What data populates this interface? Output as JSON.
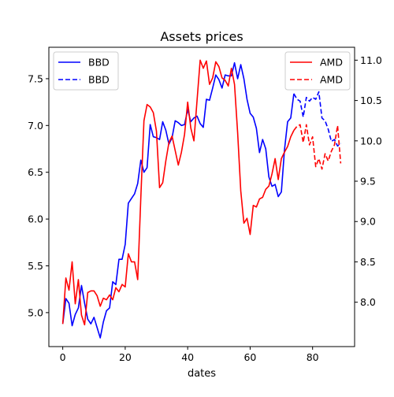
{
  "chart_data": {
    "type": "line",
    "title": "Assets prices",
    "xlabel": "dates",
    "xlim": [
      -4.45,
      93.45
    ],
    "xticks": [
      0,
      20,
      40,
      60,
      80
    ],
    "left_axis": {
      "ylim": [
        4.637,
        7.836
      ],
      "ticks": [
        5.0,
        5.5,
        6.0,
        6.5,
        7.0,
        7.5
      ]
    },
    "right_axis": {
      "ylim": [
        7.45,
        11.16
      ],
      "ticks": [
        8.0,
        8.5,
        9.0,
        9.5,
        10.0,
        10.5,
        11.0
      ]
    },
    "grid": false,
    "series": [
      {
        "name": "BBD",
        "axis": "left",
        "color": "#0000ff",
        "style": "solid",
        "x": [
          0,
          1,
          2,
          3,
          4,
          5,
          6,
          7,
          8,
          9,
          10,
          11,
          12,
          13,
          14,
          15,
          16,
          17,
          18,
          19,
          20,
          21,
          22,
          23,
          24,
          25,
          26,
          27,
          28,
          29,
          30,
          31,
          32,
          33,
          34,
          35,
          36,
          37,
          38,
          39,
          40,
          41,
          42,
          43,
          44,
          45,
          46,
          47,
          48,
          49,
          50,
          51,
          52,
          53,
          54,
          55,
          56,
          57,
          58,
          59,
          60,
          61,
          62,
          63,
          64,
          65,
          66,
          67,
          68,
          69,
          70,
          71,
          72,
          73,
          74
        ],
        "values": [
          4.88,
          5.15,
          5.1,
          4.86,
          4.98,
          5.05,
          5.29,
          5.1,
          4.93,
          4.88,
          4.95,
          4.84,
          4.73,
          4.9,
          5.02,
          5.05,
          5.33,
          5.3,
          5.57,
          5.57,
          5.73,
          6.17,
          6.22,
          6.27,
          6.38,
          6.63,
          6.5,
          6.55,
          7.01,
          6.88,
          6.87,
          6.85,
          7.04,
          6.95,
          6.8,
          6.87,
          7.05,
          7.03,
          7.0,
          7.01,
          7.17,
          7.04,
          7.08,
          7.1,
          7.02,
          6.98,
          7.28,
          7.27,
          7.4,
          7.54,
          7.49,
          7.4,
          7.54,
          7.53,
          7.53,
          7.67,
          7.5,
          7.65,
          7.5,
          7.28,
          7.13,
          7.09,
          6.97,
          6.71,
          6.85,
          6.75,
          6.45,
          6.35,
          6.37,
          6.24,
          6.29,
          6.74,
          7.04,
          7.08,
          7.34
        ]
      },
      {
        "name": "BBD",
        "axis": "left",
        "color": "#0000ff",
        "style": "dashed",
        "x": [
          74,
          75,
          76,
          77,
          78,
          79,
          80,
          81,
          82,
          83,
          84,
          85,
          86,
          87,
          88,
          89
        ],
        "values": [
          7.34,
          7.28,
          7.26,
          7.09,
          7.3,
          7.26,
          7.3,
          7.28,
          7.36,
          7.08,
          7.05,
          6.96,
          6.83,
          6.85,
          6.78,
          6.81
        ]
      },
      {
        "name": "AMD",
        "axis": "right",
        "color": "#ff0000",
        "style": "solid",
        "x": [
          0,
          1,
          2,
          3,
          4,
          5,
          6,
          7,
          8,
          9,
          10,
          11,
          12,
          13,
          14,
          15,
          16,
          17,
          18,
          19,
          20,
          21,
          22,
          23,
          24,
          25,
          26,
          27,
          28,
          29,
          30,
          31,
          32,
          33,
          34,
          35,
          36,
          37,
          38,
          39,
          40,
          41,
          42,
          43,
          44,
          45,
          46,
          47,
          48,
          49,
          50,
          51,
          52,
          53,
          54,
          55,
          56,
          57,
          58,
          59,
          60,
          61,
          62,
          63,
          64,
          65,
          66,
          67,
          68,
          69,
          70,
          71,
          72,
          73,
          74
        ],
        "values": [
          7.73,
          8.3,
          8.15,
          8.5,
          7.98,
          8.28,
          7.84,
          7.72,
          8.12,
          8.14,
          8.14,
          8.08,
          7.95,
          8.05,
          8.03,
          8.09,
          8.03,
          8.18,
          8.13,
          8.22,
          8.19,
          8.6,
          8.5,
          8.5,
          8.28,
          9.3,
          10.25,
          10.45,
          10.42,
          10.35,
          10.12,
          9.42,
          9.48,
          9.75,
          9.98,
          10.06,
          9.88,
          9.7,
          9.86,
          10.08,
          10.48,
          10.16,
          10.0,
          10.5,
          11.0,
          10.9,
          10.99,
          10.7,
          10.78,
          10.98,
          10.92,
          10.78,
          10.75,
          10.68,
          10.9,
          10.7,
          10.1,
          9.38,
          8.98,
          9.04,
          8.84,
          9.2,
          9.18,
          9.28,
          9.3,
          9.4,
          9.44,
          9.59,
          9.78,
          9.52,
          9.78,
          9.86,
          9.93,
          10.05,
          10.13
        ]
      },
      {
        "name": "AMD",
        "axis": "right",
        "color": "#ff0000",
        "style": "dashed",
        "x": [
          74,
          75,
          76,
          77,
          78,
          79,
          80,
          81,
          82,
          83,
          84,
          85,
          86,
          87,
          88,
          89
        ],
        "values": [
          10.13,
          10.18,
          10.2,
          9.98,
          10.2,
          9.95,
          10.05,
          9.68,
          9.78,
          9.65,
          9.84,
          9.75,
          9.87,
          9.95,
          10.19,
          9.72
        ]
      }
    ],
    "legend_left": {
      "placement": "upper-left",
      "entries": [
        {
          "label": "BBD",
          "color": "#0000ff",
          "style": "solid"
        },
        {
          "label": "BBD",
          "color": "#0000ff",
          "style": "dashed"
        }
      ]
    },
    "legend_right": {
      "placement": "upper-right",
      "entries": [
        {
          "label": "AMD",
          "color": "#ff0000",
          "style": "solid"
        },
        {
          "label": "AMD",
          "color": "#ff0000",
          "style": "dashed"
        }
      ]
    }
  }
}
